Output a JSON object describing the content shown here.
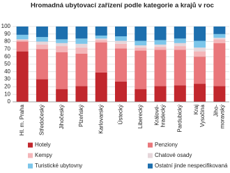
{
  "chart_data": {
    "type": "bar",
    "stacked": true,
    "title": "Hromadná ubytovací zařízení podle kategorie a krajů v roc",
    "categories": [
      "Hl. m. Praha",
      "Středočeský",
      "Jihočeský",
      "Plzeňský",
      "Karlovarský",
      "Ústecký",
      "Liberecký",
      "Královéhradecký",
      "Pardubický",
      "Kraj Vysočina",
      "Jihomoravský"
    ],
    "category_lines": [
      [
        "Hl. m. Praha"
      ],
      [
        "Středočeský"
      ],
      [
        "Jihočeský"
      ],
      [
        "Plzeňský"
      ],
      [
        "Karlovarský"
      ],
      [
        "Ústecký"
      ],
      [
        "Liberecký"
      ],
      [
        "Králové-",
        "hradecký"
      ],
      [
        "Pardubický"
      ],
      [
        "Kraj",
        "Vysočina"
      ],
      [
        "Jiho-",
        "moravský"
      ]
    ],
    "series": [
      {
        "name": "Hotely",
        "color": "#c1272d",
        "values": [
          67,
          30,
          17,
          21,
          39,
          27,
          17,
          21,
          22,
          24,
          21
        ]
      },
      {
        "name": "Penziony",
        "color": "#e9777b",
        "values": [
          13,
          40,
          49,
          43,
          40,
          44,
          51,
          48,
          47,
          36,
          57
        ]
      },
      {
        "name": "Kempy",
        "color": "#f4b6b9",
        "values": [
          2,
          6,
          8,
          8,
          3,
          6,
          4,
          4,
          5,
          7,
          5
        ]
      },
      {
        "name": "Chatové osady",
        "color": "#e6d6da",
        "values": [
          1,
          4,
          4,
          5,
          2,
          4,
          3,
          3,
          4,
          5,
          2
        ]
      },
      {
        "name": "Turistické ubytovny",
        "color": "#7cc6ea",
        "values": [
          6,
          6,
          5,
          7,
          4,
          6,
          6,
          6,
          6,
          9,
          5
        ]
      },
      {
        "name": "Ostatní jinde nespecifikovaná",
        "color": "#1d6fae",
        "values": [
          11,
          14,
          17,
          16,
          12,
          13,
          19,
          18,
          16,
          19,
          10
        ]
      }
    ],
    "ylim": [
      0,
      100
    ],
    "yticks": [
      0,
      10,
      20,
      30,
      40,
      50,
      60,
      70,
      80,
      90,
      100
    ],
    "grid": true
  }
}
